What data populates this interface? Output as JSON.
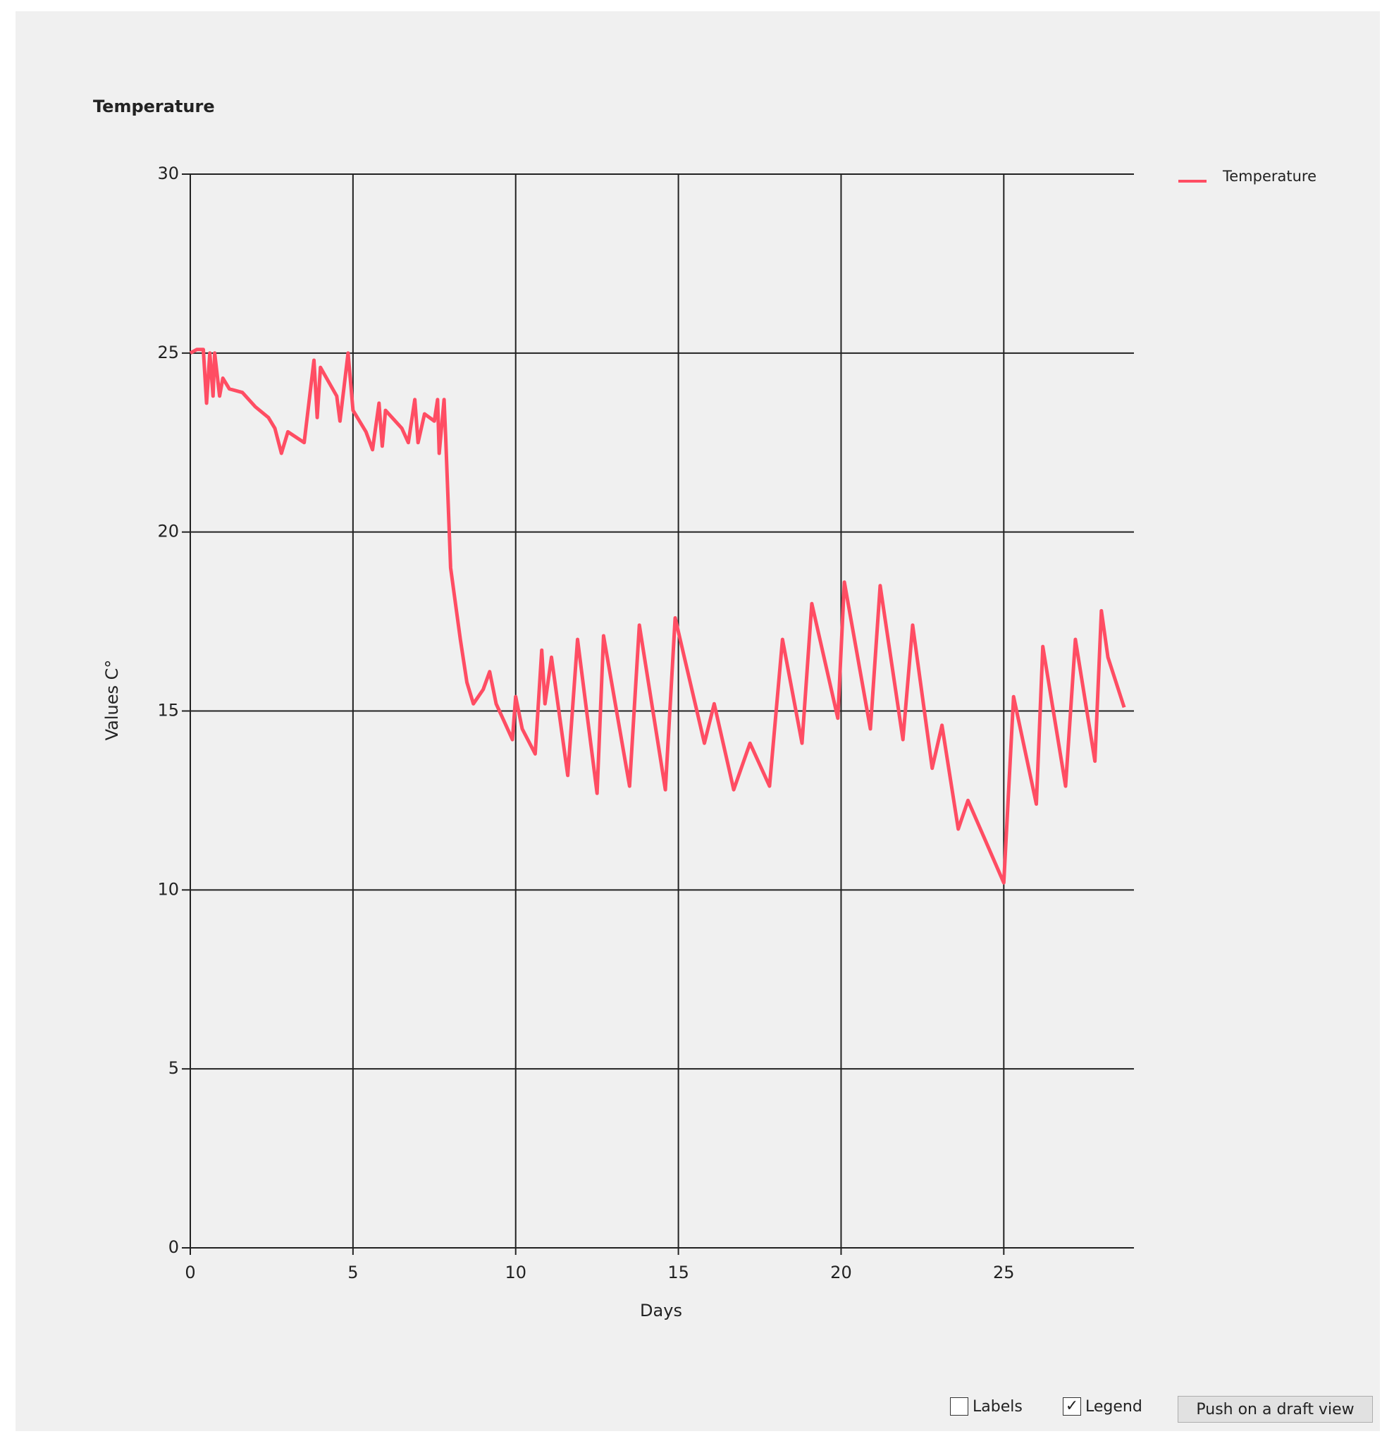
{
  "chart_data": {
    "type": "line",
    "title": "Temperature",
    "xlabel": "Days",
    "ylabel": "Values C°",
    "x": [
      0,
      0.2,
      0.4,
      0.5,
      0.6,
      0.7,
      0.75,
      0.9,
      1.0,
      1.2,
      1.6,
      2.0,
      2.4,
      2.6,
      2.8,
      3.0,
      3.5,
      3.8,
      3.9,
      4.0,
      4.5,
      4.6,
      4.85,
      5.0,
      5.4,
      5.6,
      5.8,
      5.9,
      6.0,
      6.5,
      6.7,
      6.9,
      7.0,
      7.2,
      7.5,
      7.6,
      7.65,
      7.8,
      7.85,
      8.0,
      8.3,
      8.5,
      8.7,
      9.0,
      9.2,
      9.4,
      9.7,
      9.9,
      10.0,
      10.2,
      10.6,
      10.8,
      10.9,
      11.1,
      11.6,
      11.9,
      12.5,
      12.7,
      13.5,
      13.8,
      14.6,
      14.9,
      15.8,
      16.1,
      16.7,
      17.2,
      17.8,
      18.2,
      18.8,
      19.1,
      19.9,
      20.1,
      20.9,
      21.2,
      21.9,
      22.2,
      22.8,
      23.1,
      23.6,
      23.9,
      25.0,
      25.3,
      26.0,
      26.2,
      26.9,
      27.2,
      27.8,
      28.0,
      28.2,
      28.7
    ],
    "series": [
      {
        "name": "Temperature",
        "color": "#ff4d63",
        "values": [
          25,
          25.1,
          25.1,
          23.6,
          25,
          23.8,
          25,
          23.8,
          24.3,
          24,
          23.9,
          23.5,
          23.2,
          22.9,
          22.2,
          22.8,
          22.5,
          24.8,
          23.2,
          24.6,
          23.8,
          23.1,
          25,
          23.4,
          22.8,
          22.3,
          23.6,
          22.4,
          23.4,
          22.9,
          22.5,
          23.7,
          22.5,
          23.3,
          23.1,
          23.7,
          22.2,
          23.7,
          22.6,
          19,
          17,
          15.8,
          15.2,
          15.6,
          16.1,
          15.2,
          14.6,
          14.2,
          15.4,
          14.5,
          13.8,
          16.7,
          15.2,
          16.5,
          13.2,
          17,
          12.7,
          17.1,
          12.9,
          17.4,
          12.8,
          17.6,
          14.1,
          15.2,
          12.8,
          14.1,
          12.9,
          17,
          14.1,
          18,
          14.8,
          18.6,
          14.5,
          18.5,
          14.2,
          17.4,
          13.4,
          14.6,
          11.7,
          12.5,
          10.2,
          15.4,
          12.4,
          16.8,
          12.9,
          17,
          13.6,
          17.8,
          16.5,
          15.1
        ]
      }
    ],
    "xlim": [
      0,
      29
    ],
    "ylim": [
      0,
      30
    ],
    "xticks": [
      0,
      5,
      10,
      15,
      20,
      25
    ],
    "yticks": [
      0,
      5,
      10,
      15,
      20,
      25,
      30
    ],
    "grid": true,
    "legend": "right"
  },
  "controls": {
    "labels_checkbox": {
      "label": "Labels",
      "checked": false
    },
    "legend_checkbox": {
      "label": "Legend",
      "checked": true
    },
    "button": {
      "label": "Push on a draft view"
    }
  }
}
